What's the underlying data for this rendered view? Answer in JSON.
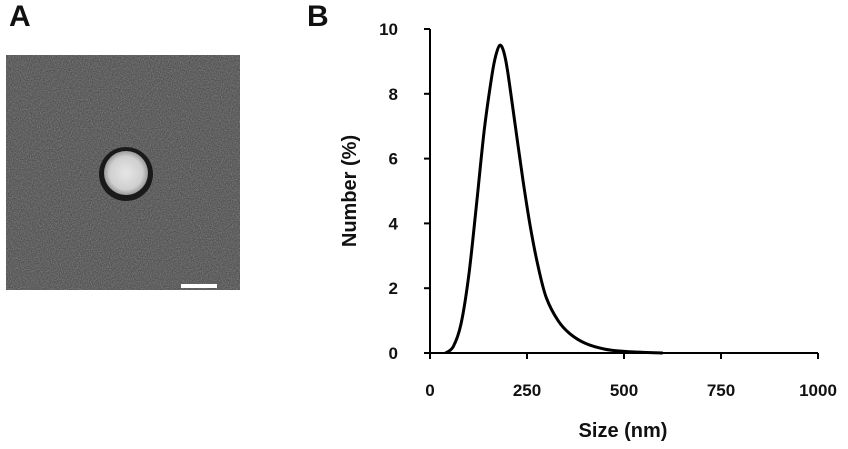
{
  "panels": {
    "a_label": "A",
    "b_label": "B"
  },
  "tem_image": {
    "background_color": "#3a3a3a",
    "particle_color": "#d9d9d9",
    "scale_bar_color": "#ffffff"
  },
  "chart_data": {
    "type": "line",
    "title": "",
    "xlabel": "Size (nm)",
    "ylabel": "Number (%)",
    "xlim": [
      0,
      1000
    ],
    "ylim": [
      0,
      10
    ],
    "x_ticks": [
      "0",
      "250",
      "500",
      "750",
      "1000"
    ],
    "y_ticks": [
      "0",
      "2",
      "4",
      "6",
      "8",
      "10"
    ],
    "grid": false,
    "line_color": "#000000",
    "series": [
      {
        "x": [
          40,
          60,
          80,
          100,
          120,
          140,
          160,
          170,
          180,
          190,
          200,
          220,
          240,
          260,
          280,
          300,
          330,
          360,
          400,
          450,
          500,
          550,
          600
        ],
        "values": [
          0.0,
          0.2,
          0.9,
          2.4,
          4.6,
          6.9,
          8.6,
          9.2,
          9.5,
          9.3,
          8.7,
          7.0,
          5.3,
          3.8,
          2.6,
          1.7,
          1.0,
          0.6,
          0.3,
          0.12,
          0.05,
          0.02,
          0.0
        ]
      }
    ]
  }
}
